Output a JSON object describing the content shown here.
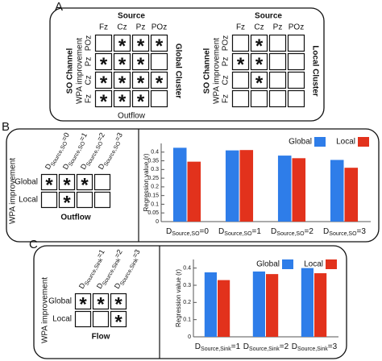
{
  "marker": "*",
  "panels": [
    {
      "label": "A",
      "grids": [
        {
          "title": "Source",
          "columns": [
            "Fz",
            "Cz",
            "Pz",
            "POz"
          ],
          "row_title": "SO Channel",
          "row_subtitle": "WPA improvement",
          "rows": [
            "POz",
            "Pz",
            "Cz",
            "Fz"
          ],
          "side_label": "Global Cluster",
          "footer": "Outflow",
          "cells": [
            [
              false,
              true,
              true,
              true
            ],
            [
              true,
              true,
              true,
              false
            ],
            [
              true,
              true,
              true,
              true
            ],
            [
              true,
              true,
              true,
              false
            ]
          ]
        },
        {
          "title": "Source",
          "columns": [
            "Fz",
            "Cz",
            "Pz",
            "POz"
          ],
          "row_title": "SO Channel",
          "row_subtitle": "WPA improvement",
          "rows": [
            "POz",
            "Pz",
            "Cz",
            "Fz"
          ],
          "side_label": "Local Cluster",
          "cells": [
            [
              false,
              true,
              false,
              false
            ],
            [
              true,
              true,
              false,
              false
            ],
            [
              false,
              true,
              false,
              false
            ],
            [
              false,
              false,
              false,
              false
            ]
          ]
        }
      ]
    },
    {
      "label": "B",
      "grid": {
        "row_title": "WPA improvement",
        "column_symbol": "D",
        "column_subscript": "Source,SO",
        "columns": [
          "=0",
          "=1",
          "=2",
          "=3"
        ],
        "rows": [
          "Global",
          "Local"
        ],
        "footer": "Outflow",
        "cells": [
          [
            true,
            true,
            true,
            false
          ],
          [
            false,
            true,
            false,
            false
          ]
        ]
      }
    },
    {
      "label": "C",
      "grid": {
        "row_title": "WPA improvement",
        "column_symbol": "D",
        "column_subscript": "Source,Sink",
        "columns": [
          "=1",
          "=2",
          "=3"
        ],
        "rows": [
          "Global",
          "Local"
        ],
        "footer": "Flow",
        "cells": [
          [
            true,
            true,
            true
          ],
          [
            false,
            false,
            true
          ]
        ]
      }
    }
  ],
  "chart_data": [
    {
      "type": "bar",
      "y_label": "Regression value (r)",
      "category_symbol": "D",
      "category_subscript": "Source,SO",
      "categories": [
        "=0",
        "=1",
        "=2",
        "=3"
      ],
      "series": [
        {
          "name": "Global",
          "color": "#2e7de9",
          "values": [
            0.425,
            0.41,
            0.38,
            0.355
          ]
        },
        {
          "name": "Local",
          "color": "#e2321c",
          "values": [
            0.345,
            0.412,
            0.365,
            0.31
          ]
        }
      ],
      "ylim": [
        0,
        0.45
      ],
      "yticks": [
        0,
        0.05,
        0.1,
        0.15,
        0.2,
        0.25,
        0.3,
        0.35,
        0.4
      ],
      "legend": "top-right"
    },
    {
      "type": "bar",
      "y_label": "Regression value (r)",
      "category_symbol": "D",
      "category_subscript": "Source,Sink",
      "categories": [
        "=1",
        "=2",
        "=3"
      ],
      "series": [
        {
          "name": "Global",
          "color": "#2e7de9",
          "values": [
            0.375,
            0.38,
            0.4
          ]
        },
        {
          "name": "Local",
          "color": "#e2321c",
          "values": [
            0.33,
            0.365,
            0.37
          ]
        }
      ],
      "ylim": [
        0,
        0.45
      ],
      "yticks": [
        0,
        0.1,
        0.2,
        0.3,
        0.4
      ],
      "legend": "top-right"
    }
  ]
}
